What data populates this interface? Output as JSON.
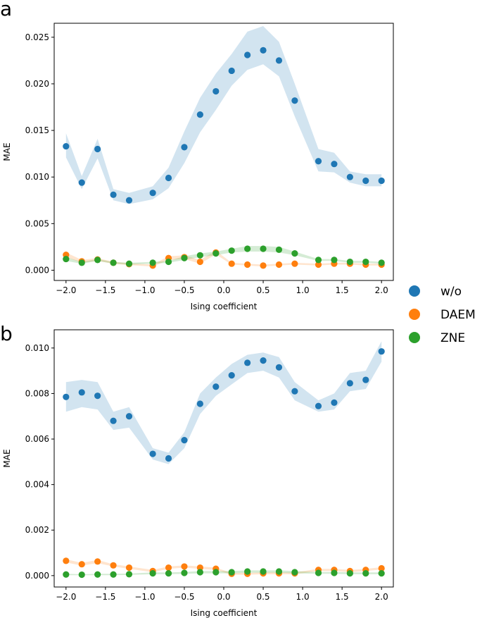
{
  "legend": {
    "placement": "right",
    "entries": [
      {
        "name": "w/o",
        "color": "#1f77b4"
      },
      {
        "name": "DAEM",
        "color": "#ff7f0e"
      },
      {
        "name": "ZNE",
        "color": "#2ca02c"
      }
    ]
  },
  "chart_data": [
    {
      "panel_label": "a",
      "type": "scatter",
      "xlabel": "Ising coefficient",
      "ylabel": "MAE",
      "xlim": [
        -2.15,
        2.15
      ],
      "ylim": [
        -0.0011,
        0.0265
      ],
      "xticks": [
        -2.0,
        -1.5,
        -1.0,
        -0.5,
        0.0,
        0.5,
        1.0,
        1.5,
        2.0
      ],
      "xtick_labels": [
        "−2.0",
        "−1.5",
        "−1.0",
        "−0.5",
        "0.0",
        "0.5",
        "1.0",
        "1.5",
        "2.0"
      ],
      "yticks": [
        0.0,
        0.005,
        0.01,
        0.015,
        0.02,
        0.025
      ],
      "ytick_labels": [
        "0.000",
        "0.005",
        "0.010",
        "0.015",
        "0.020",
        "0.025"
      ],
      "x": [
        -2.0,
        -1.8,
        -1.6,
        -1.4,
        -1.2,
        -0.9,
        -0.7,
        -0.5,
        -0.3,
        -0.1,
        0.1,
        0.3,
        0.5,
        0.7,
        0.9,
        1.2,
        1.4,
        1.6,
        1.8,
        2.0
      ],
      "series": [
        {
          "name": "w/o",
          "color": "#1f77b4",
          "values": [
            0.0133,
            0.0094,
            0.013,
            0.0081,
            0.0075,
            0.0083,
            0.0099,
            0.0132,
            0.0167,
            0.0192,
            0.0214,
            0.0231,
            0.0236,
            0.0225,
            0.0182,
            0.0117,
            0.0114,
            0.01,
            0.0096,
            0.0096
          ],
          "band_low": [
            0.0121,
            0.0087,
            0.012,
            0.0075,
            0.0071,
            0.0076,
            0.0088,
            0.0115,
            0.0148,
            0.0172,
            0.0198,
            0.0215,
            0.0221,
            0.0208,
            0.0165,
            0.0106,
            0.0105,
            0.0094,
            0.009,
            0.009
          ],
          "band_high": [
            0.0147,
            0.0101,
            0.0141,
            0.0087,
            0.0083,
            0.009,
            0.011,
            0.0149,
            0.0185,
            0.0211,
            0.0232,
            0.0256,
            0.0262,
            0.0245,
            0.02,
            0.013,
            0.0126,
            0.0106,
            0.0103,
            0.0103
          ]
        },
        {
          "name": "DAEM",
          "color": "#ff7f0e",
          "values": [
            0.00165,
            0.00095,
            0.00115,
            0.0008,
            0.00065,
            0.0005,
            0.0013,
            0.0014,
            0.0009,
            0.0019,
            0.0007,
            0.0006,
            0.0005,
            0.0006,
            0.0007,
            0.0006,
            0.0007,
            0.0007,
            0.0006,
            0.0006
          ],
          "band_low": [
            0.0014,
            0.0008,
            0.001,
            0.0007,
            0.00055,
            0.0004,
            0.0011,
            0.0012,
            0.0007,
            0.0017,
            0.0006,
            0.0005,
            0.0004,
            0.0005,
            0.0006,
            0.0005,
            0.0006,
            0.0006,
            0.0005,
            0.0005
          ],
          "band_high": [
            0.0019,
            0.0011,
            0.0013,
            0.0009,
            0.00075,
            0.0006,
            0.0015,
            0.0016,
            0.0011,
            0.0021,
            0.0008,
            0.0007,
            0.0006,
            0.0007,
            0.0008,
            0.0007,
            0.0008,
            0.0008,
            0.0007,
            0.0007
          ]
        },
        {
          "name": "ZNE",
          "color": "#2ca02c",
          "values": [
            0.0012,
            0.0008,
            0.0011,
            0.0008,
            0.0007,
            0.0008,
            0.0009,
            0.0013,
            0.0016,
            0.0018,
            0.0021,
            0.0023,
            0.0023,
            0.0022,
            0.0018,
            0.0011,
            0.0011,
            0.0009,
            0.0009,
            0.0008
          ],
          "band_low": [
            0.001,
            0.0007,
            0.001,
            0.0007,
            0.0006,
            0.0007,
            0.0008,
            0.0011,
            0.0014,
            0.0016,
            0.0019,
            0.002,
            0.002,
            0.0019,
            0.0016,
            0.001,
            0.001,
            0.0008,
            0.0008,
            0.0007
          ],
          "band_high": [
            0.0014,
            0.0009,
            0.0012,
            0.0009,
            0.0008,
            0.0009,
            0.001,
            0.0015,
            0.0018,
            0.002,
            0.0023,
            0.0026,
            0.0026,
            0.0025,
            0.002,
            0.0012,
            0.0012,
            0.001,
            0.001,
            0.0009
          ]
        }
      ]
    },
    {
      "panel_label": "b",
      "type": "scatter",
      "xlabel": "Ising coefficient",
      "ylabel": "MAE",
      "xlim": [
        -2.15,
        2.15
      ],
      "ylim": [
        -0.0005,
        0.0108
      ],
      "xticks": [
        -2.0,
        -1.5,
        -1.0,
        -0.5,
        0.0,
        0.5,
        1.0,
        1.5,
        2.0
      ],
      "xtick_labels": [
        "−2.0",
        "−1.5",
        "−1.0",
        "−0.5",
        "0.0",
        "0.5",
        "1.0",
        "1.5",
        "2.0"
      ],
      "yticks": [
        0.0,
        0.002,
        0.004,
        0.006,
        0.008,
        0.01
      ],
      "ytick_labels": [
        "0.000",
        "0.002",
        "0.004",
        "0.006",
        "0.008",
        "0.010"
      ],
      "x": [
        -2.0,
        -1.8,
        -1.6,
        -1.4,
        -1.2,
        -0.9,
        -0.7,
        -0.5,
        -0.3,
        -0.1,
        0.1,
        0.3,
        0.5,
        0.7,
        0.9,
        1.2,
        1.4,
        1.6,
        1.8,
        2.0
      ],
      "series": [
        {
          "name": "w/o",
          "color": "#1f77b4",
          "values": [
            0.00785,
            0.00805,
            0.0079,
            0.0068,
            0.007,
            0.00535,
            0.00515,
            0.00595,
            0.00755,
            0.0083,
            0.0088,
            0.00935,
            0.00945,
            0.00915,
            0.0081,
            0.00745,
            0.0076,
            0.00845,
            0.0086,
            0.00985
          ],
          "band_low": [
            0.0072,
            0.0074,
            0.0073,
            0.0064,
            0.0065,
            0.0051,
            0.0049,
            0.0056,
            0.0071,
            0.0079,
            0.0084,
            0.0089,
            0.009,
            0.0087,
            0.0077,
            0.0072,
            0.0073,
            0.0081,
            0.0082,
            0.0094
          ],
          "band_high": [
            0.0085,
            0.0086,
            0.0085,
            0.0072,
            0.0074,
            0.0056,
            0.0054,
            0.0063,
            0.008,
            0.0087,
            0.0093,
            0.0097,
            0.0098,
            0.0096,
            0.0085,
            0.0077,
            0.008,
            0.0089,
            0.009,
            0.0103
          ]
        },
        {
          "name": "DAEM",
          "color": "#ff7f0e",
          "values": [
            0.00065,
            0.0005,
            0.00062,
            0.00045,
            0.00035,
            0.0002,
            0.00035,
            0.0004,
            0.00035,
            0.0003,
            8e-05,
            8e-05,
            0.0001,
            0.0001,
            0.0001,
            0.00025,
            0.00025,
            0.0002,
            0.00025,
            0.00032
          ],
          "band_low": [
            0.00058,
            0.00044,
            0.00055,
            0.0004,
            0.0003,
            0.00015,
            0.0003,
            0.00035,
            0.0003,
            0.00025,
            4e-05,
            4e-05,
            6e-05,
            6e-05,
            6e-05,
            0.0002,
            0.0002,
            0.00015,
            0.0002,
            0.00027
          ],
          "band_high": [
            0.00072,
            0.00056,
            0.00069,
            0.0005,
            0.0004,
            0.00025,
            0.0004,
            0.00045,
            0.0004,
            0.00035,
            0.00012,
            0.00012,
            0.00014,
            0.00014,
            0.00014,
            0.0003,
            0.0003,
            0.00025,
            0.0003,
            0.00037
          ]
        },
        {
          "name": "ZNE",
          "color": "#2ca02c",
          "values": [
            5e-05,
            4e-05,
            5e-05,
            5e-05,
            6e-05,
            0.0001,
            0.0001,
            0.00012,
            0.00015,
            0.00015,
            0.00015,
            0.00018,
            0.00018,
            0.00018,
            0.00015,
            0.00012,
            0.00012,
            0.0001,
            0.0001,
            0.0001
          ],
          "band_low": [
            2e-05,
            2e-05,
            2e-05,
            2e-05,
            3e-05,
            6e-05,
            6e-05,
            8e-05,
            0.0001,
            0.0001,
            0.0001,
            0.00013,
            0.00013,
            0.00013,
            0.0001,
            8e-05,
            8e-05,
            6e-05,
            6e-05,
            6e-05
          ],
          "band_high": [
            8e-05,
            6e-05,
            8e-05,
            8e-05,
            9e-05,
            0.00014,
            0.00014,
            0.00016,
            0.0002,
            0.0002,
            0.0002,
            0.00023,
            0.00023,
            0.00023,
            0.0002,
            0.00016,
            0.00016,
            0.00014,
            0.00014,
            0.00014
          ]
        }
      ]
    }
  ]
}
